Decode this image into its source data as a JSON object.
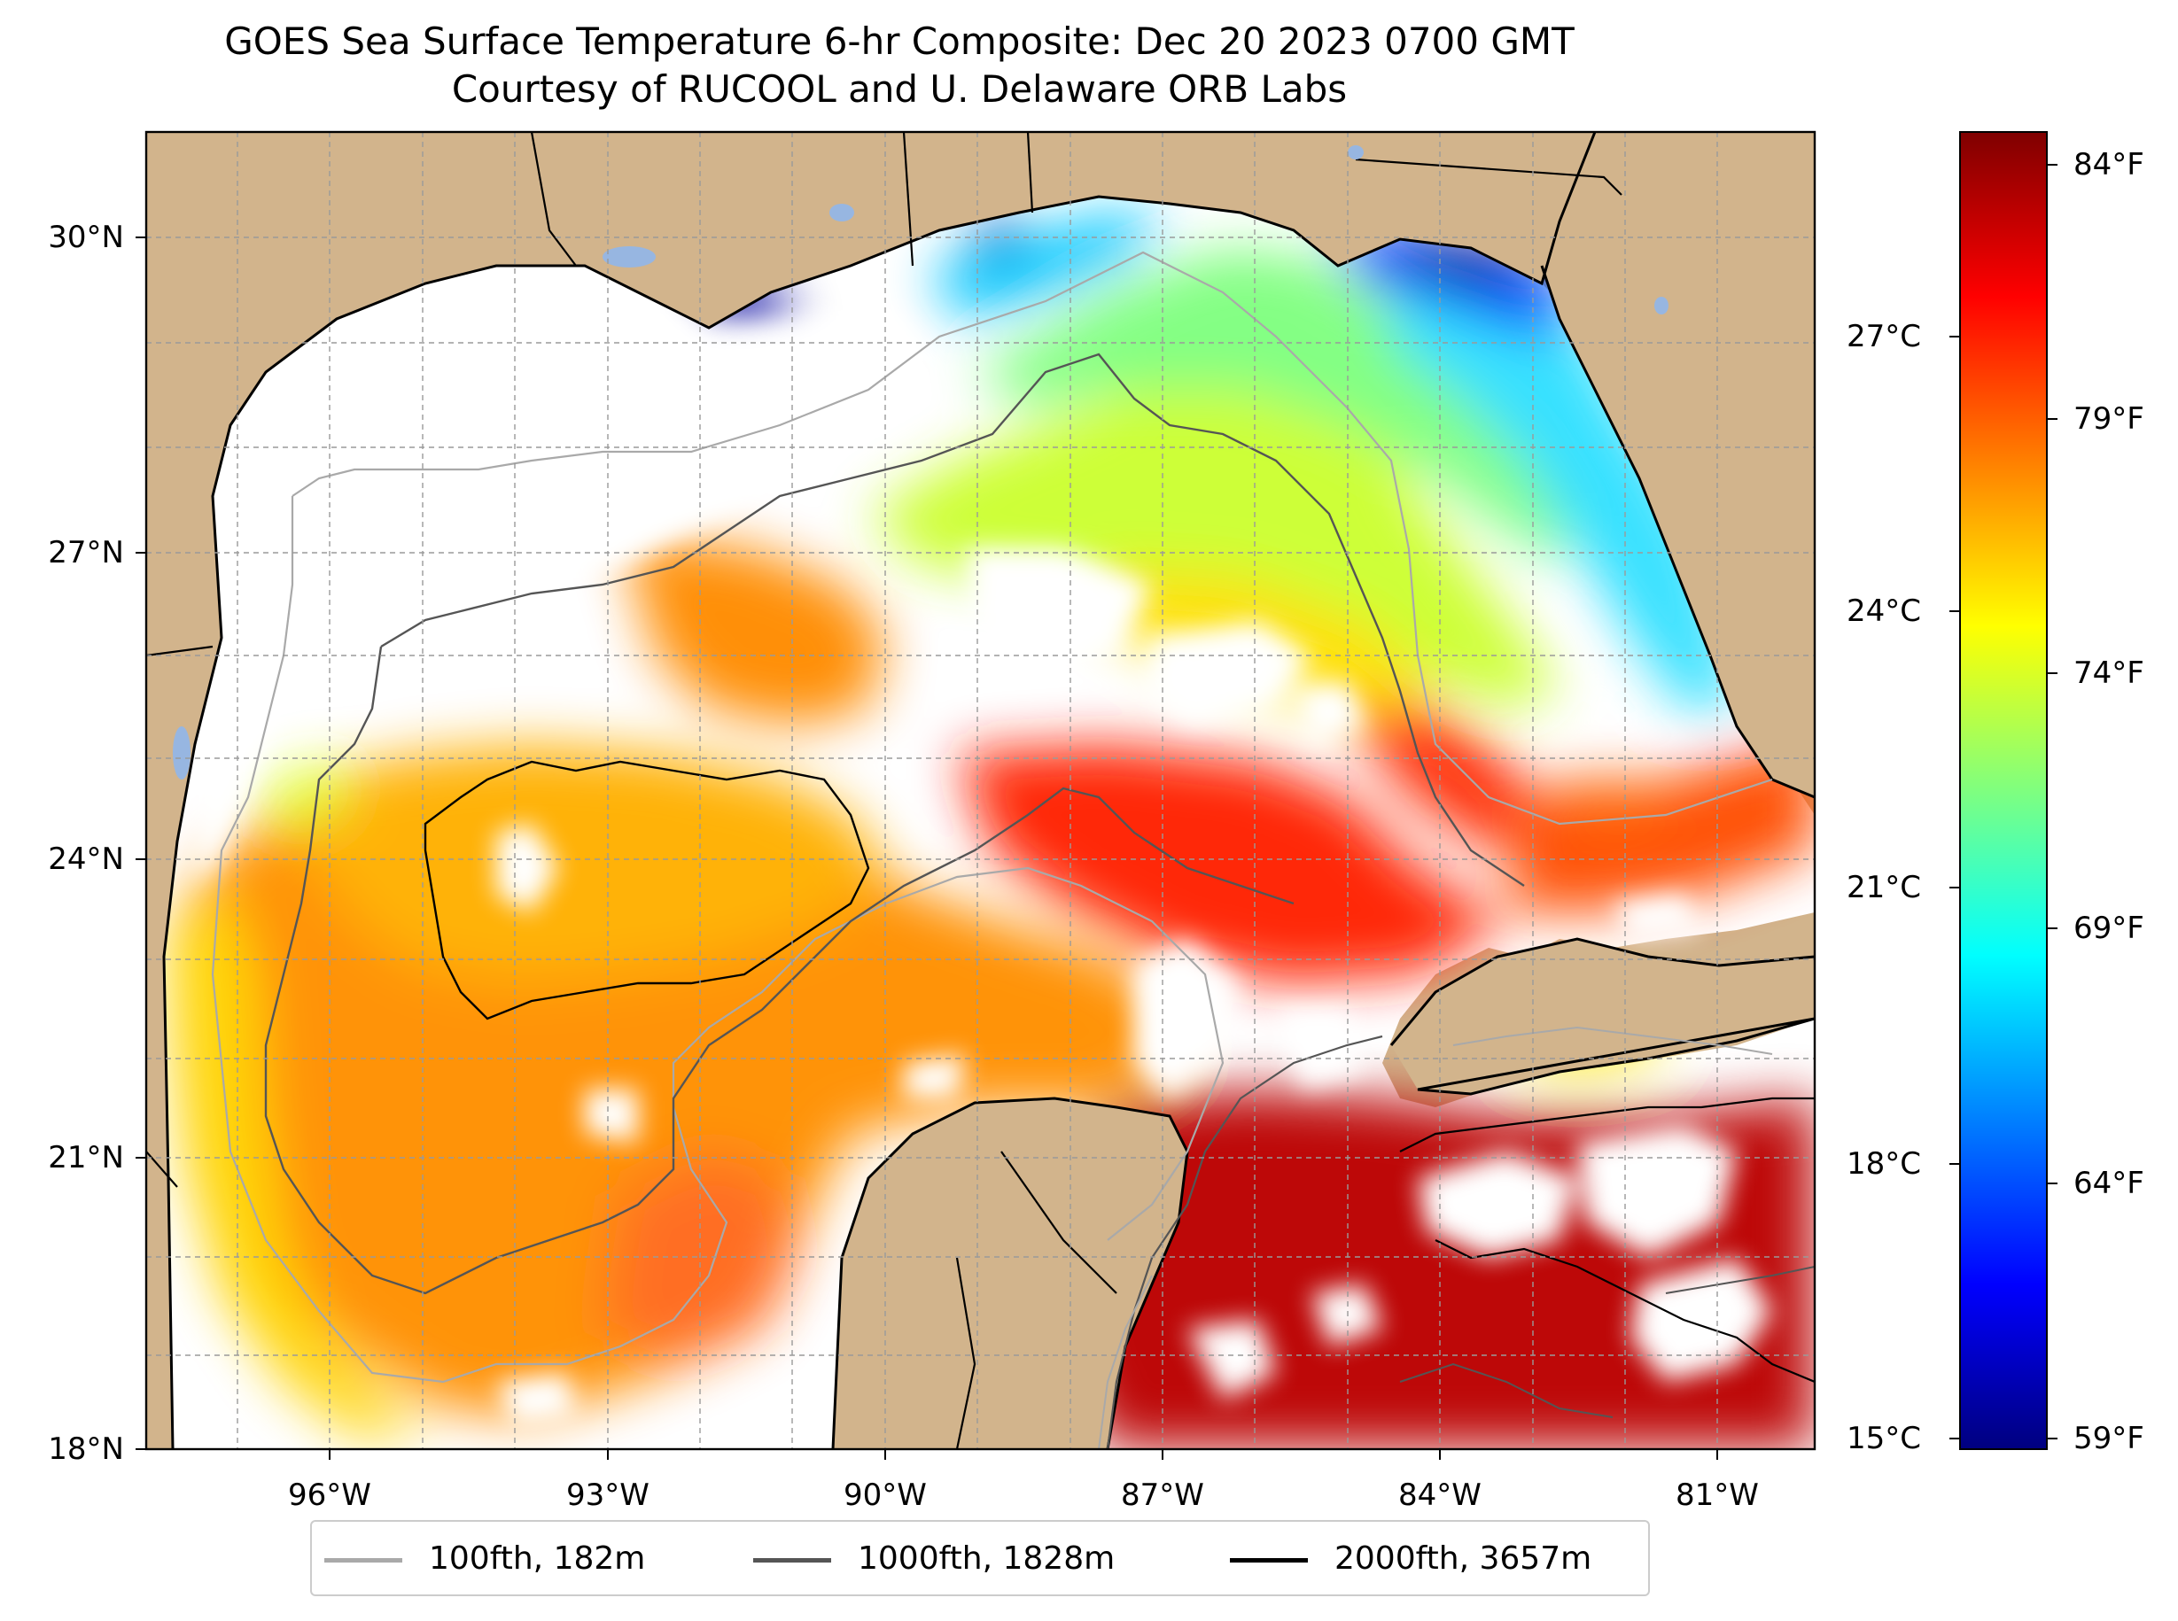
{
  "title": {
    "line1": "GOES Sea Surface Temperature 6-hr Composite: Dec 20 2023 0700 GMT",
    "line2": "Courtesy of RUCOOL and U. Delaware ORB Labs"
  },
  "map": {
    "lat_ticks": [
      "30°N",
      "27°N",
      "24°N",
      "21°N",
      "18°N"
    ],
    "lon_ticks": [
      "96°W",
      "93°W",
      "90°W",
      "87°W",
      "84°W",
      "81°W"
    ],
    "colors": {
      "land": "#d2b48c",
      "water_no_data": "#ffffff",
      "lakes": "#97b6e1"
    }
  },
  "colorbar": {
    "fahrenheit_ticks": [
      "84°F",
      "79°F",
      "74°F",
      "69°F",
      "64°F",
      "59°F"
    ],
    "celsius_ticks": [
      "27°C",
      "24°C",
      "21°C",
      "18°C",
      "15°C"
    ],
    "colormap": "jet",
    "range_celsius": [
      15,
      29
    ]
  },
  "legend": {
    "items": [
      {
        "label": "100fth, 182m",
        "color": "#a9a9a9"
      },
      {
        "label": "1000fth, 1828m",
        "color": "#555555"
      },
      {
        "label": "2000fth, 3657m",
        "color": "#000000"
      }
    ]
  }
}
